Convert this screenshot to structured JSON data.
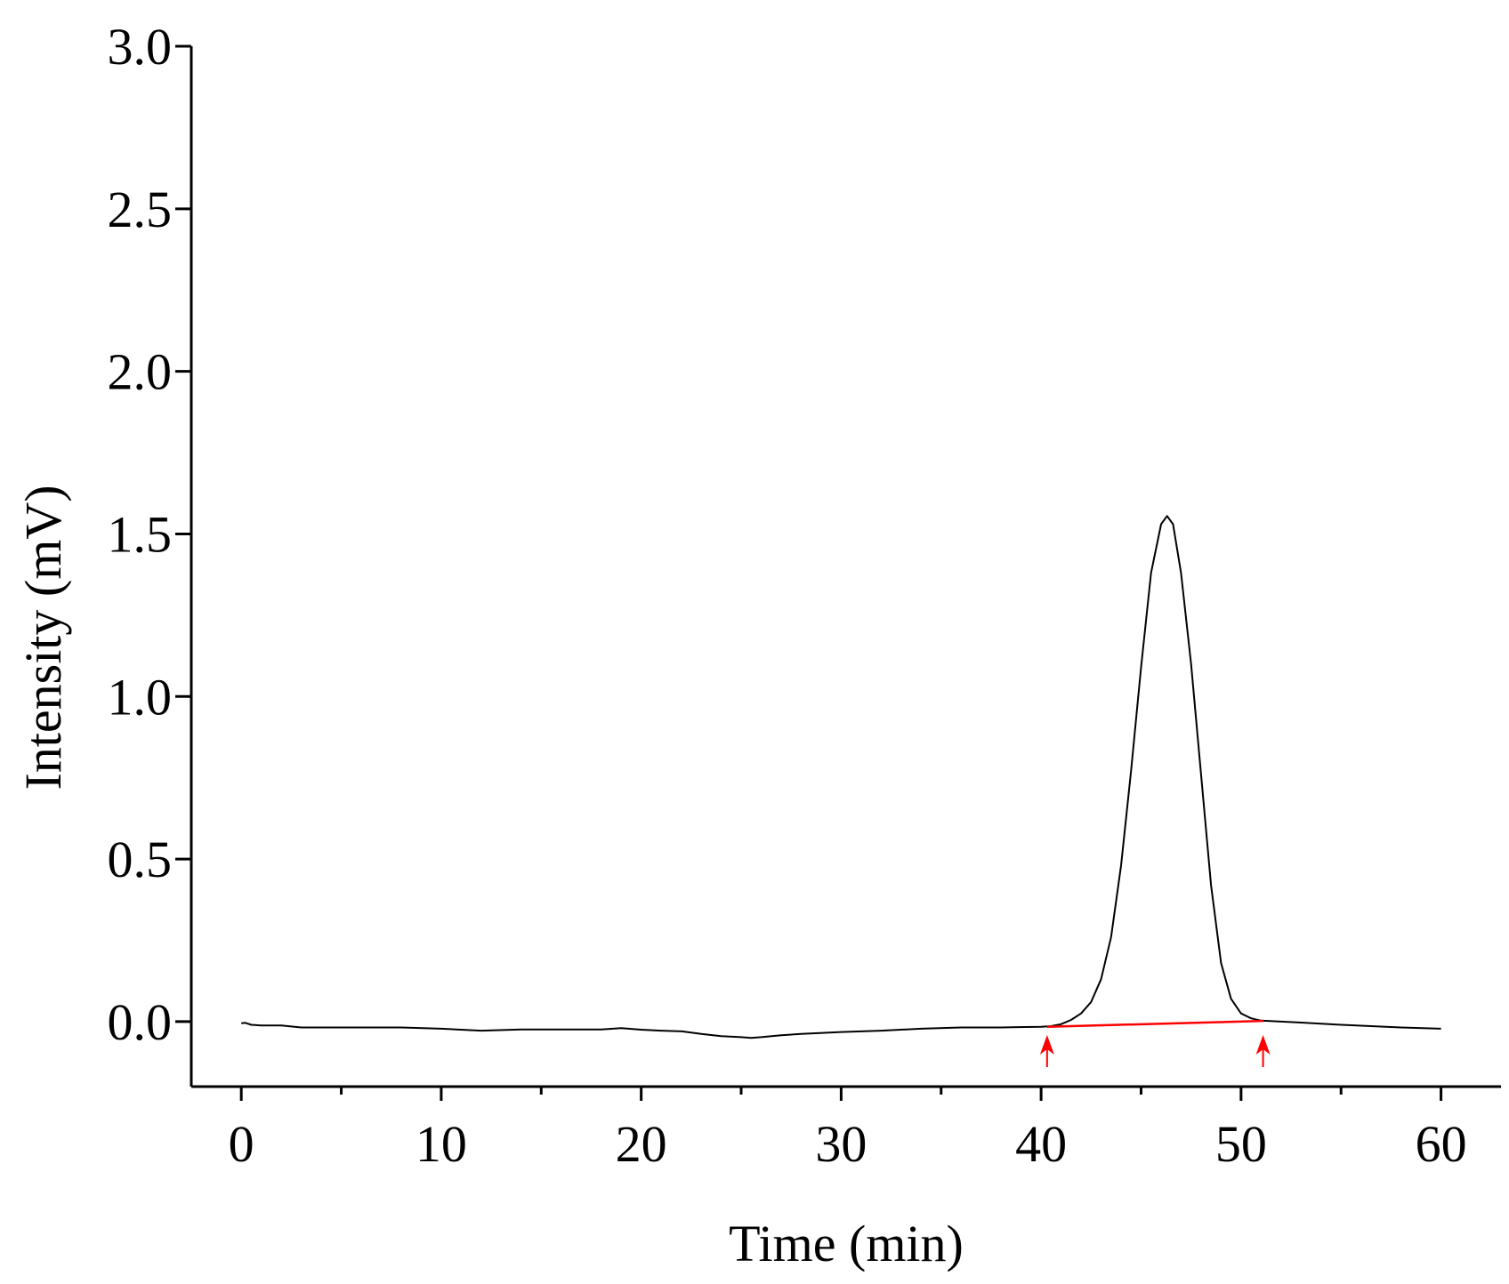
{
  "chart_data": {
    "type": "line",
    "title": "",
    "xlabel": "Time (min)",
    "ylabel": "Intensity (mV)",
    "xlim": [
      -2.5,
      63
    ],
    "ylim": [
      -0.2,
      3.0
    ],
    "x_ticks": [
      0,
      10,
      20,
      30,
      40,
      50,
      60
    ],
    "y_ticks": [
      0.0,
      0.5,
      1.0,
      1.5,
      2.0,
      2.5,
      3.0
    ],
    "x_tick_labels": [
      "0",
      "10",
      "20",
      "30",
      "40",
      "50",
      "60"
    ],
    "y_tick_labels": [
      "0.0",
      "0.5",
      "1.0",
      "1.5",
      "2.0",
      "2.5",
      "3.0"
    ],
    "x_minor_ticks": [
      5,
      15,
      25,
      35,
      45,
      55
    ],
    "grid": false,
    "series": [
      {
        "color": "#000000",
        "x": [
          0,
          0.2,
          0.5,
          1,
          2,
          2.5,
          3,
          5,
          8,
          10,
          12,
          14,
          16,
          18,
          19,
          20,
          21,
          22,
          23,
          24,
          25,
          25.5,
          26,
          27,
          28,
          30,
          32,
          34,
          36,
          38,
          40,
          40.5,
          41,
          41.5,
          42,
          42.5,
          43,
          43.5,
          44,
          44.5,
          45,
          45.5,
          46,
          46.3,
          46.6,
          47,
          47.5,
          48,
          48.5,
          49,
          49.5,
          50,
          50.5,
          51,
          52,
          53,
          55,
          58,
          60
        ],
        "y": [
          -0.005,
          -0.004,
          -0.01,
          -0.012,
          -0.012,
          -0.015,
          -0.018,
          -0.018,
          -0.018,
          -0.022,
          -0.028,
          -0.024,
          -0.024,
          -0.024,
          -0.02,
          -0.025,
          -0.028,
          -0.03,
          -0.038,
          -0.045,
          -0.048,
          -0.05,
          -0.048,
          -0.042,
          -0.038,
          -0.032,
          -0.028,
          -0.022,
          -0.018,
          -0.018,
          -0.016,
          -0.014,
          -0.008,
          0.005,
          0.025,
          0.06,
          0.13,
          0.26,
          0.48,
          0.77,
          1.09,
          1.38,
          1.53,
          1.555,
          1.53,
          1.38,
          1.1,
          0.76,
          0.42,
          0.18,
          0.07,
          0.025,
          0.01,
          0.003,
          0.0,
          -0.003,
          -0.01,
          -0.018,
          -0.022
        ]
      }
    ],
    "integration_baseline": {
      "color": "#ff0000",
      "x": [
        40.3,
        51.1
      ],
      "y": [
        -0.016,
        0.002
      ]
    },
    "markers": [
      {
        "type": "up-arrow",
        "color": "#ff0000",
        "x": 40.3
      },
      {
        "type": "up-arrow",
        "color": "#ff0000",
        "x": 51.1
      }
    ]
  }
}
